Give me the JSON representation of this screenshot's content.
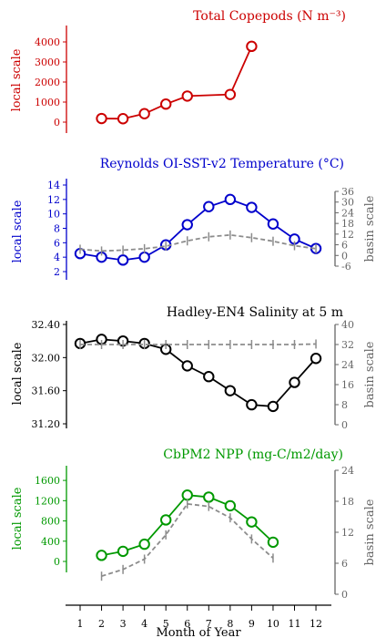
{
  "chart_data": [
    {
      "type": "line",
      "title": "Total Copepods (N m⁻³)",
      "ylabel_left": "local scale",
      "ylim_left": [
        0,
        4000
      ],
      "yticks_left": [
        "0",
        "1000",
        "2000",
        "3000",
        "4000"
      ],
      "color": "#cc0000",
      "x": [
        2,
        3,
        4,
        5,
        6,
        8,
        9
      ],
      "series": [
        {
          "values": [
            180,
            170,
            420,
            900,
            1300,
            1380,
            3780
          ]
        }
      ]
    },
    {
      "type": "line",
      "title": "Reynolds OI-SST-v2 Temperature (°C)",
      "ylabel_left": "local scale",
      "ylabel_right": "basin scale",
      "ylim_left": [
        2,
        14
      ],
      "yticks_left": [
        "2",
        "4",
        "6",
        "8",
        "10",
        "12",
        "14"
      ],
      "ylim_right": [
        -6,
        36
      ],
      "yticks_right": [
        "-6",
        "0",
        "6",
        "12",
        "18",
        "24",
        "30",
        "36"
      ],
      "color": "#0000cc",
      "x": [
        1,
        2,
        3,
        4,
        5,
        6,
        7,
        8,
        9,
        10,
        11,
        12
      ],
      "series": [
        {
          "axis": "left",
          "values": [
            4.5,
            4.0,
            3.6,
            4.0,
            5.7,
            8.5,
            11.0,
            12.0,
            10.9,
            8.6,
            6.5,
            5.2
          ]
        },
        {
          "axis": "right",
          "dashed": true,
          "values": [
            3.5,
            2.5,
            3.0,
            3.8,
            5.2,
            8.2,
            10.5,
            11.5,
            10.0,
            8.0,
            5.5,
            3.8
          ]
        }
      ]
    },
    {
      "type": "line",
      "title": "Hadley-EN4 Salinity at 5 m",
      "ylabel_left": "local scale",
      "ylabel_right": "basin scale",
      "ylim_left": [
        31.2,
        32.4
      ],
      "yticks_left": [
        "31.20",
        "31.60",
        "32.00",
        "32.40"
      ],
      "ylim_right": [
        0,
        40
      ],
      "yticks_right": [
        "0",
        "8",
        "16",
        "24",
        "32",
        "40"
      ],
      "color": "#000000",
      "x": [
        1,
        2,
        3,
        4,
        5,
        6,
        7,
        8,
        9,
        10,
        11,
        12
      ],
      "series": [
        {
          "axis": "left",
          "values": [
            32.17,
            32.22,
            32.2,
            32.17,
            32.1,
            31.9,
            31.77,
            31.6,
            31.43,
            31.41,
            31.7,
            31.99
          ]
        },
        {
          "axis": "right",
          "dashed": true,
          "values": [
            32,
            32,
            32,
            32,
            32,
            32,
            32,
            32,
            32,
            32,
            32,
            32.2
          ]
        }
      ]
    },
    {
      "type": "line",
      "title": "CbPM2 NPP (mg-C/m2/day)",
      "ylabel_left": "local scale",
      "ylabel_right": "basin scale",
      "ylim_left": [
        0,
        1800
      ],
      "yticks_left": [
        "0",
        "400",
        "800",
        "1200",
        "1600"
      ],
      "ylim_right": [
        0,
        24
      ],
      "yticks_right": [
        "0",
        "6",
        "12",
        "18",
        "24"
      ],
      "color": "#009900",
      "x": [
        2,
        3,
        4,
        5,
        6,
        7,
        8,
        9,
        10
      ],
      "series": [
        {
          "axis": "left",
          "values": [
            120,
            200,
            340,
            820,
            1310,
            1270,
            1100,
            780,
            380
          ]
        },
        {
          "axis": "right",
          "dashed": true,
          "values": [
            3.5,
            4.8,
            6.8,
            11.5,
            17.5,
            17.0,
            14.8,
            10.7,
            7.0
          ]
        }
      ]
    }
  ],
  "x_axis": {
    "label": "Month of Year",
    "ticks": [
      "1",
      "2",
      "3",
      "4",
      "5",
      "6",
      "7",
      "8",
      "9",
      "10",
      "11",
      "12"
    ]
  }
}
